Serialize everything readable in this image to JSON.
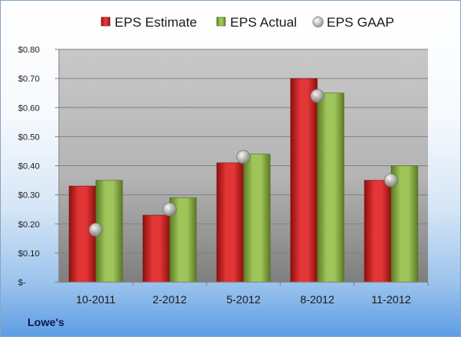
{
  "chart_data": {
    "type": "bar",
    "categories": [
      "10-2011",
      "2-2012",
      "5-2012",
      "8-2012",
      "11-2012"
    ],
    "series": [
      {
        "name": "EPS Estimate",
        "kind": "bar",
        "color": "#d42a2a",
        "values": [
          0.33,
          0.23,
          0.41,
          0.7,
          0.35
        ]
      },
      {
        "name": "EPS Actual",
        "kind": "bar",
        "color": "#8cb04a",
        "values": [
          0.35,
          0.29,
          0.44,
          0.65,
          0.4
        ]
      },
      {
        "name": "EPS GAAP",
        "kind": "marker",
        "color": "#b0b0b0",
        "values": [
          0.18,
          0.25,
          0.43,
          0.64,
          0.35
        ]
      }
    ],
    "ylim": [
      0,
      0.8
    ],
    "yticks": [
      0,
      0.1,
      0.2,
      0.3,
      0.4,
      0.5,
      0.6,
      0.7,
      0.8
    ],
    "ytick_labels": [
      "$-",
      "$0.10",
      "$0.20",
      "$0.30",
      "$0.40",
      "$0.50",
      "$0.60",
      "$0.70",
      "$0.80"
    ],
    "grid": true,
    "legend_position": "top"
  },
  "footer": {
    "company": "Lowe's"
  }
}
